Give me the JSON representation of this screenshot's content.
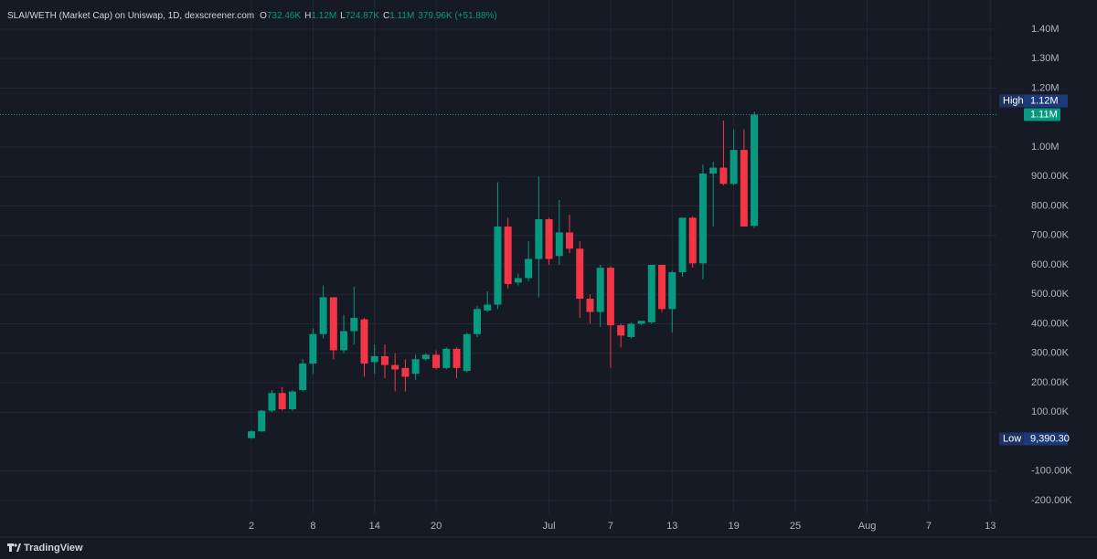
{
  "chart_data": {
    "type": "candlestick",
    "title": "SLAI/WETH (Market Cap) on Uniswap, 1D, dexscreener.com",
    "ohlc_legend": [
      {
        "label": "O",
        "value": "732.46K"
      },
      {
        "label": "H",
        "value": "1.12M"
      },
      {
        "label": "L",
        "value": "724.87K"
      },
      {
        "label": "C",
        "value": "1.11M"
      }
    ],
    "change": "379.96K (+51.88%)",
    "brand": "TradingView",
    "x": [
      2,
      3,
      4,
      5,
      6,
      7,
      8,
      9,
      10,
      11,
      12,
      13,
      14,
      15,
      16,
      17,
      18,
      19,
      20,
      21,
      22,
      23,
      24,
      25,
      26,
      27,
      28,
      29,
      30,
      31,
      32,
      33,
      34,
      35,
      36,
      37,
      38,
      39,
      40,
      41,
      42,
      43,
      44,
      45,
      46,
      47,
      48,
      49,
      50,
      51
    ],
    "open": [
      12000,
      35000,
      105000,
      165000,
      110000,
      175000,
      265000,
      365000,
      490000,
      310000,
      375000,
      415000,
      270000,
      290000,
      260000,
      250000,
      230000,
      280000,
      295000,
      250000,
      315000,
      240000,
      365000,
      445000,
      465000,
      730000,
      540000,
      555000,
      620000,
      755000,
      630000,
      710000,
      655000,
      485000,
      440000,
      590000,
      395000,
      355000,
      400000,
      405000,
      600000,
      450000,
      575000,
      760000,
      605000,
      910000,
      930000,
      875000,
      990000,
      732460
    ],
    "high": [
      38000,
      108000,
      175000,
      185000,
      175000,
      280000,
      385000,
      530000,
      490000,
      430000,
      525000,
      420000,
      330000,
      330000,
      300000,
      280000,
      295000,
      300000,
      310000,
      320000,
      320000,
      370000,
      460000,
      510000,
      880000,
      760000,
      570000,
      680000,
      900000,
      760000,
      820000,
      770000,
      680000,
      500000,
      600000,
      595000,
      400000,
      405000,
      410000,
      600000,
      600000,
      580000,
      760000,
      765000,
      940000,
      950000,
      1090000,
      1060000,
      1060000,
      1120000
    ],
    "low": [
      9390.3,
      32000,
      100000,
      105000,
      105000,
      170000,
      230000,
      350000,
      280000,
      300000,
      330000,
      220000,
      230000,
      215000,
      170000,
      170000,
      210000,
      275000,
      245000,
      245000,
      215000,
      235000,
      355000,
      440000,
      450000,
      520000,
      530000,
      545000,
      490000,
      600000,
      600000,
      640000,
      420000,
      400000,
      390000,
      250000,
      320000,
      350000,
      395000,
      400000,
      440000,
      370000,
      560000,
      590000,
      550000,
      730000,
      870000,
      870000,
      730000,
      724870
    ],
    "close": [
      35000,
      105000,
      165000,
      110000,
      170000,
      265000,
      365000,
      490000,
      310000,
      375000,
      420000,
      265000,
      290000,
      260000,
      245000,
      220000,
      280000,
      295000,
      250000,
      315000,
      250000,
      365000,
      450000,
      465000,
      730000,
      535000,
      555000,
      620000,
      755000,
      620000,
      710000,
      655000,
      485000,
      440000,
      590000,
      395000,
      360000,
      400000,
      410000,
      600000,
      450000,
      575000,
      760000,
      605000,
      910000,
      930000,
      875000,
      990000,
      730000,
      1110000
    ],
    "up_color": "#089981",
    "down_color": "#f23645",
    "xlim": [
      -22.5,
      74.6
    ],
    "xticks": [
      2,
      8,
      14,
      20,
      {
        "value": 31,
        "label": "Jul"
      },
      {
        "value": 37,
        "label": "7"
      },
      {
        "value": 43,
        "label": "13"
      },
      {
        "value": 49,
        "label": "19"
      },
      {
        "value": 55,
        "label": "25"
      },
      {
        "value": 62,
        "label": "Aug"
      },
      {
        "value": 68,
        "label": "7"
      },
      {
        "value": 74,
        "label": "13"
      }
    ],
    "ylim": [
      -243400,
      1499000
    ],
    "yticks": [
      {
        "value": 1400000,
        "label": "1.40M"
      },
      {
        "value": 1300000,
        "label": "1.30M"
      },
      {
        "value": 1200000,
        "label": "1.20M"
      },
      {
        "value": 1000000,
        "label": "1.00M"
      },
      {
        "value": 900000,
        "label": "900.00K"
      },
      {
        "value": 800000,
        "label": "800.00K"
      },
      {
        "value": 700000,
        "label": "700.00K"
      },
      {
        "value": 600000,
        "label": "600.00K"
      },
      {
        "value": 500000,
        "label": "500.00K"
      },
      {
        "value": 400000,
        "label": "400.00K"
      },
      {
        "value": 300000,
        "label": "300.00K"
      },
      {
        "value": 200000,
        "label": "200.00K"
      },
      {
        "value": 100000,
        "label": "100.00K"
      },
      {
        "value": -100000,
        "label": "-100.00K"
      },
      {
        "value": -200000,
        "label": "-200.00K"
      }
    ],
    "grid": true,
    "high_marker": {
      "label": "High",
      "value": 1120000,
      "value_label": "1.12M"
    },
    "last_price": {
      "value": 1110000,
      "value_label": "1.11M"
    },
    "low_marker": {
      "label": "Low",
      "value": 9390.3,
      "value_label": "9,390.30"
    }
  }
}
